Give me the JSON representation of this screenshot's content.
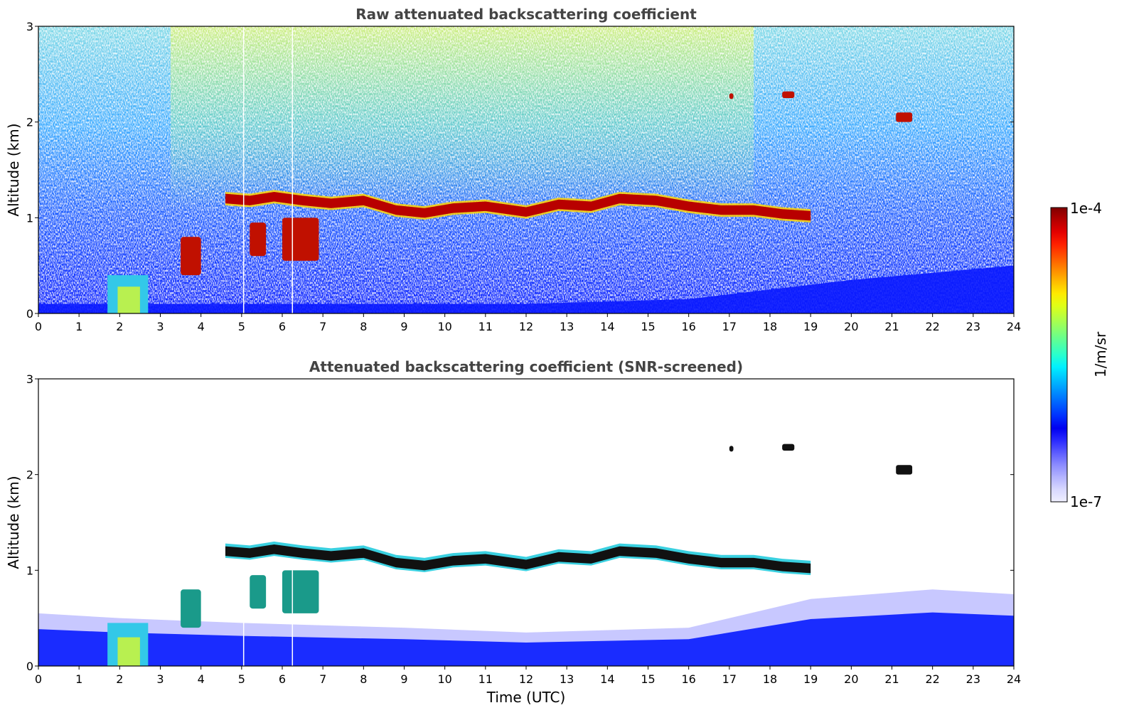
{
  "chart_data": [
    {
      "type": "heatmap",
      "title": "Raw attenuated backscattering coefficient",
      "xlabel": "",
      "ylabel": "Altitude (km)",
      "xlim": [
        0,
        24
      ],
      "ylim": [
        0,
        3
      ],
      "x_ticks": [
        "0",
        "1",
        "2",
        "3",
        "4",
        "5",
        "6",
        "7",
        "8",
        "9",
        "10",
        "11",
        "12",
        "13",
        "14",
        "15",
        "16",
        "17",
        "18",
        "19",
        "20",
        "21",
        "22",
        "23",
        "24"
      ],
      "y_ticks": [
        "0",
        "1",
        "2",
        "3"
      ],
      "colorscale": "jet",
      "color_range": [
        "1e-7",
        "1e-4"
      ],
      "features": {
        "cloud_layer": [
          {
            "t": 4.6,
            "z": 1.2
          },
          {
            "t": 5.2,
            "z": 1.18
          },
          {
            "t": 5.8,
            "z": 1.22
          },
          {
            "t": 6.5,
            "z": 1.18
          },
          {
            "t": 7.2,
            "z": 1.15
          },
          {
            "t": 8.0,
            "z": 1.18
          },
          {
            "t": 8.8,
            "z": 1.08
          },
          {
            "t": 9.5,
            "z": 1.05
          },
          {
            "t": 10.2,
            "z": 1.1
          },
          {
            "t": 11.0,
            "z": 1.12
          },
          {
            "t": 12.0,
            "z": 1.06
          },
          {
            "t": 12.8,
            "z": 1.14
          },
          {
            "t": 13.6,
            "z": 1.12
          },
          {
            "t": 14.3,
            "z": 1.2
          },
          {
            "t": 15.2,
            "z": 1.18
          },
          {
            "t": 16.0,
            "z": 1.12
          },
          {
            "t": 16.8,
            "z": 1.08
          },
          {
            "t": 17.6,
            "z": 1.08
          },
          {
            "t": 18.3,
            "z": 1.04
          },
          {
            "t": 19.0,
            "z": 1.02
          }
        ],
        "lower_cloud_patches": [
          {
            "t0": 3.5,
            "t1": 4.0,
            "z0": 0.4,
            "z1": 0.8
          },
          {
            "t0": 5.2,
            "t1": 5.6,
            "z0": 0.6,
            "z1": 0.95
          },
          {
            "t0": 6.0,
            "t1": 6.9,
            "z0": 0.55,
            "z1": 1.0
          }
        ],
        "high_cloud_patches": [
          {
            "t0": 17.0,
            "t1": 17.1,
            "z0": 2.24,
            "z1": 2.3
          },
          {
            "t0": 18.3,
            "t1": 18.6,
            "z0": 2.25,
            "z1": 2.32
          },
          {
            "t0": 21.1,
            "t1": 21.5,
            "z0": 2.0,
            "z1": 2.1
          }
        ],
        "boundary_layer_top": [
          {
            "t": 0,
            "z": 0.1
          },
          {
            "t": 12,
            "z": 0.1
          },
          {
            "t": 16,
            "z": 0.15
          },
          {
            "t": 20,
            "z": 0.35
          },
          {
            "t": 24,
            "z": 0.5
          }
        ]
      }
    },
    {
      "type": "heatmap",
      "title": "Attenuated backscattering coefficient (SNR-screened)",
      "xlabel": "Time (UTC)",
      "ylabel": "Altitude (km)",
      "xlim": [
        0,
        24
      ],
      "ylim": [
        0,
        3
      ],
      "x_ticks": [
        "0",
        "1",
        "2",
        "3",
        "4",
        "5",
        "6",
        "7",
        "8",
        "9",
        "10",
        "11",
        "12",
        "13",
        "14",
        "15",
        "16",
        "17",
        "18",
        "19",
        "20",
        "21",
        "22",
        "23",
        "24"
      ],
      "y_ticks": [
        "0",
        "1",
        "2",
        "3"
      ],
      "colorscale": "jet",
      "color_range": [
        "1e-7",
        "1e-4"
      ],
      "features": {
        "screened_boundary_layer_top": [
          {
            "t": 0,
            "z": 0.55
          },
          {
            "t": 2,
            "z": 0.5
          },
          {
            "t": 5,
            "z": 0.45
          },
          {
            "t": 9,
            "z": 0.4
          },
          {
            "t": 12,
            "z": 0.35
          },
          {
            "t": 16,
            "z": 0.4
          },
          {
            "t": 19,
            "z": 0.7
          },
          {
            "t": 22,
            "z": 0.8
          },
          {
            "t": 24,
            "z": 0.75
          }
        ]
      }
    }
  ],
  "colorbar": {
    "label": "1/m/sr",
    "top_label": "1e-4",
    "bottom_label": "1e-7",
    "colors": [
      "#800000",
      "#b40000",
      "#e30000",
      "#ff2000",
      "#ff5300",
      "#ff8600",
      "#ffb900",
      "#ffea00",
      "#e0ff16",
      "#b4ff43",
      "#86ff70",
      "#56ff9e",
      "#29ffcd",
      "#00f0ff",
      "#00c0ff",
      "#0090ff",
      "#0060ff",
      "#0030ff",
      "#0000f0",
      "#2a2aff",
      "#5c5cff",
      "#8c8cff",
      "#b4b4ff",
      "#d8d8ff",
      "#efefff"
    ]
  }
}
